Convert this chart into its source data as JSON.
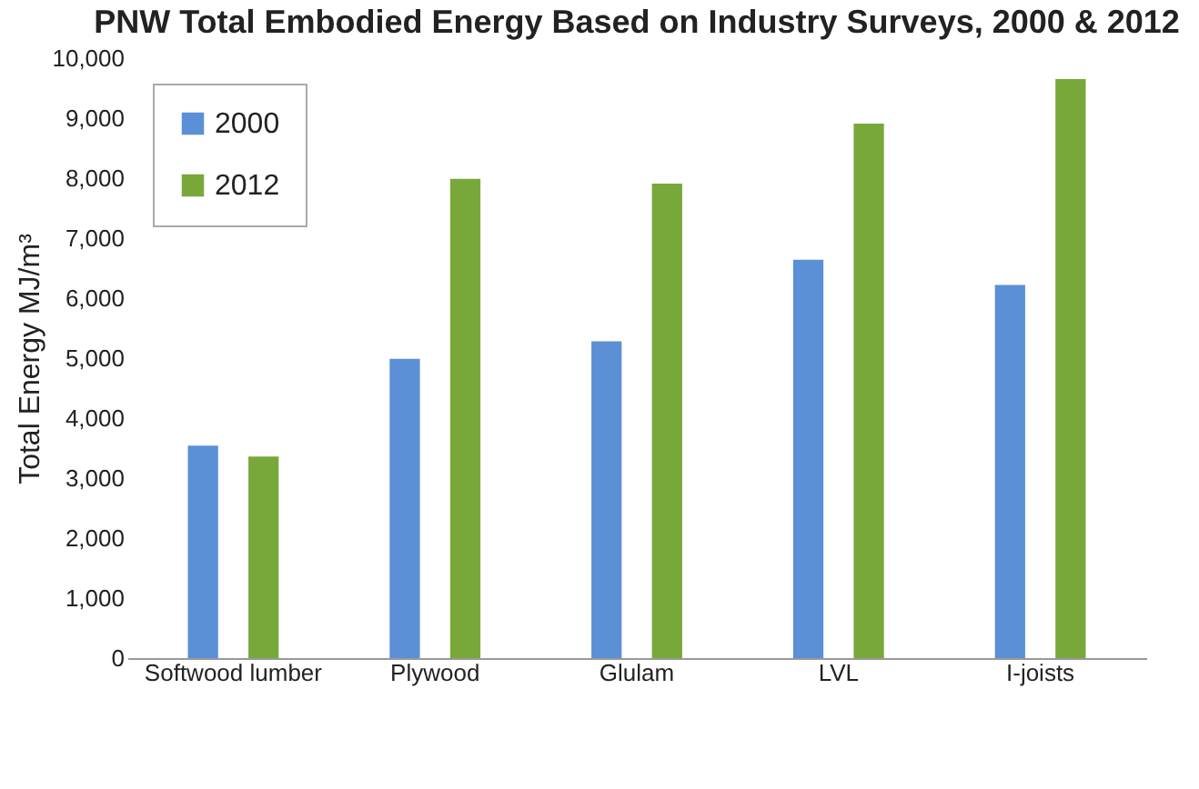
{
  "chart_data": {
    "type": "bar",
    "title": "PNW Total Embodied Energy Based on Industry Surveys, 2000 & 2012",
    "ylabel": "Total Energy MJ/m³",
    "categories": [
      "Softwood lumber",
      "Plywood",
      "Glulam",
      "LVL",
      "I-joists"
    ],
    "series": [
      {
        "name": "2000",
        "color": "#5b8fd6",
        "values": [
          3540,
          4990,
          5280,
          6640,
          6220
        ]
      },
      {
        "name": "2012",
        "color": "#78a83a",
        "values": [
          3360,
          7990,
          7910,
          8910,
          9650
        ]
      }
    ],
    "ylim": [
      0,
      10000
    ],
    "yticks": [
      0,
      {
        "value": 1000,
        "label": "1,000"
      },
      {
        "value": 2000,
        "label": "2,000"
      },
      {
        "value": 3000,
        "label": "3,000"
      },
      {
        "value": 4000,
        "label": "4,000"
      },
      {
        "value": 5000,
        "label": "5,000"
      },
      {
        "value": 6000,
        "label": "6,000"
      },
      {
        "value": 7000,
        "label": "7,000"
      },
      {
        "value": 8000,
        "label": "8,000"
      },
      {
        "value": 9000,
        "label": "9,000"
      },
      {
        "value": 10000,
        "label": "10,000"
      }
    ],
    "legend": "top left"
  }
}
